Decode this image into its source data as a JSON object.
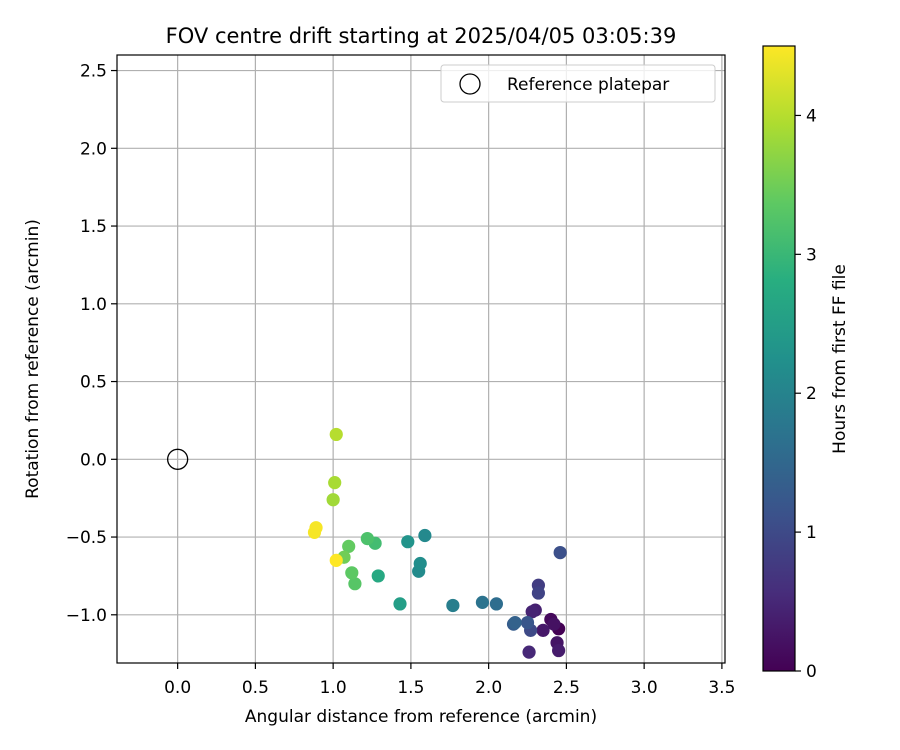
{
  "chart_data": {
    "type": "scatter",
    "title": "FOV centre drift starting at 2025/04/05 03:05:39",
    "xlabel": "Angular distance from reference (arcmin)",
    "ylabel": "Rotation from reference (arcmin)",
    "xlim": [
      -0.39,
      3.52
    ],
    "ylim": [
      -1.31,
      2.6
    ],
    "xticks": [
      0.0,
      0.5,
      1.0,
      1.5,
      2.0,
      2.5,
      3.0,
      3.5
    ],
    "xtick_labels": [
      "0.0",
      "0.5",
      "1.0",
      "1.5",
      "2.0",
      "2.5",
      "3.0",
      "3.5"
    ],
    "yticks": [
      -1.0,
      -0.5,
      0.0,
      0.5,
      1.0,
      1.5,
      2.0,
      2.5
    ],
    "ytick_labels": [
      "−1.0",
      "−0.5",
      "0.0",
      "0.5",
      "1.0",
      "1.5",
      "2.0",
      "2.5"
    ],
    "grid": true,
    "legend": {
      "placement": "top-right",
      "entries": [
        {
          "label": "Reference platepar",
          "marker": "open-circle",
          "x": 0.0,
          "y": 0.0
        }
      ]
    },
    "colorbar": {
      "label": "Hours from first FF file",
      "colormap": "viridis",
      "range": [
        0,
        4.5
      ],
      "ticks": [
        0,
        1,
        2,
        3,
        4
      ],
      "tick_labels": [
        "0",
        "1",
        "2",
        "3",
        "4"
      ]
    },
    "series": [
      {
        "points": [
          {
            "x": 2.45,
            "y": -1.09,
            "t": 0.0
          },
          {
            "x": 2.4,
            "y": -1.03,
            "t": 0.1
          },
          {
            "x": 2.42,
            "y": -1.06,
            "t": 0.2
          },
          {
            "x": 2.44,
            "y": -1.18,
            "t": 0.25
          },
          {
            "x": 2.35,
            "y": -1.1,
            "t": 0.3
          },
          {
            "x": 2.45,
            "y": -1.23,
            "t": 0.35
          },
          {
            "x": 2.3,
            "y": -0.97,
            "t": 0.4
          },
          {
            "x": 2.28,
            "y": -0.98,
            "t": 0.45
          },
          {
            "x": 2.26,
            "y": -1.24,
            "t": 0.5
          },
          {
            "x": 2.32,
            "y": -0.81,
            "t": 0.8
          },
          {
            "x": 2.32,
            "y": -0.86,
            "t": 0.9
          },
          {
            "x": 2.27,
            "y": -1.1,
            "t": 1.0
          },
          {
            "x": 2.46,
            "y": -0.6,
            "t": 1.1
          },
          {
            "x": 2.25,
            "y": -1.05,
            "t": 1.2
          },
          {
            "x": 2.16,
            "y": -1.06,
            "t": 1.3
          },
          {
            "x": 2.17,
            "y": -1.05,
            "t": 1.4
          },
          {
            "x": 2.05,
            "y": -0.93,
            "t": 1.6
          },
          {
            "x": 1.96,
            "y": -0.92,
            "t": 1.7
          },
          {
            "x": 1.77,
            "y": -0.94,
            "t": 1.9
          },
          {
            "x": 1.59,
            "y": -0.49,
            "t": 2.1
          },
          {
            "x": 1.55,
            "y": -0.72,
            "t": 2.15
          },
          {
            "x": 1.56,
            "y": -0.67,
            "t": 2.2
          },
          {
            "x": 1.48,
            "y": -0.53,
            "t": 2.3
          },
          {
            "x": 1.43,
            "y": -0.93,
            "t": 2.5
          },
          {
            "x": 1.29,
            "y": -0.75,
            "t": 2.7
          },
          {
            "x": 1.27,
            "y": -0.54,
            "t": 3.1
          },
          {
            "x": 1.22,
            "y": -0.51,
            "t": 3.2
          },
          {
            "x": 1.14,
            "y": -0.8,
            "t": 3.3
          },
          {
            "x": 1.12,
            "y": -0.73,
            "t": 3.35
          },
          {
            "x": 1.1,
            "y": -0.56,
            "t": 3.4
          },
          {
            "x": 1.07,
            "y": -0.63,
            "t": 3.5
          },
          {
            "x": 1.0,
            "y": -0.26,
            "t": 3.85
          },
          {
            "x": 1.01,
            "y": -0.15,
            "t": 3.9
          },
          {
            "x": 1.02,
            "y": 0.16,
            "t": 4.0
          },
          {
            "x": 0.88,
            "y": -0.47,
            "t": 4.45
          },
          {
            "x": 0.89,
            "y": -0.44,
            "t": 4.45
          },
          {
            "x": 1.02,
            "y": -0.65,
            "t": 4.5
          }
        ]
      }
    ]
  }
}
